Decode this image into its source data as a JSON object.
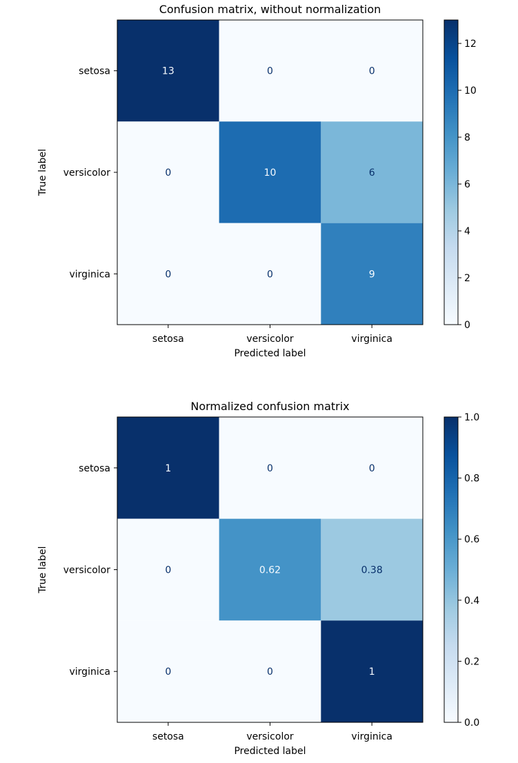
{
  "chart_data": [
    {
      "type": "heatmap",
      "title": "Confusion matrix, without normalization",
      "xlabel": "Predicted label",
      "ylabel": "True label",
      "x_categories": [
        "setosa",
        "versicolor",
        "virginica"
      ],
      "y_categories": [
        "setosa",
        "versicolor",
        "virginica"
      ],
      "values": [
        [
          13,
          0,
          0
        ],
        [
          0,
          10,
          6
        ],
        [
          0,
          0,
          9
        ]
      ],
      "cell_labels": [
        [
          "13",
          "0",
          "0"
        ],
        [
          "0",
          "10",
          "6"
        ],
        [
          "0",
          "0",
          "9"
        ]
      ],
      "colormap": "Blues",
      "color_range": [
        0,
        13
      ],
      "colorbar_ticks": [
        0,
        2,
        4,
        6,
        8,
        10,
        12
      ],
      "colorbar_tick_labels": [
        "0",
        "2",
        "4",
        "6",
        "8",
        "10",
        "12"
      ]
    },
    {
      "type": "heatmap",
      "title": "Normalized confusion matrix",
      "xlabel": "Predicted label",
      "ylabel": "True label",
      "x_categories": [
        "setosa",
        "versicolor",
        "virginica"
      ],
      "y_categories": [
        "setosa",
        "versicolor",
        "virginica"
      ],
      "values": [
        [
          1,
          0,
          0
        ],
        [
          0,
          0.62,
          0.38
        ],
        [
          0,
          0,
          1
        ]
      ],
      "cell_labels": [
        [
          "1",
          "0",
          "0"
        ],
        [
          "0",
          "0.62",
          "0.38"
        ],
        [
          "0",
          "0",
          "1"
        ]
      ],
      "colormap": "Blues",
      "color_range": [
        0,
        1
      ],
      "colorbar_ticks": [
        0,
        0.2,
        0.4,
        0.6,
        0.8,
        1.0
      ],
      "colorbar_tick_labels": [
        "0.0",
        "0.2",
        "0.4",
        "0.6",
        "0.8",
        "1.0"
      ]
    }
  ]
}
